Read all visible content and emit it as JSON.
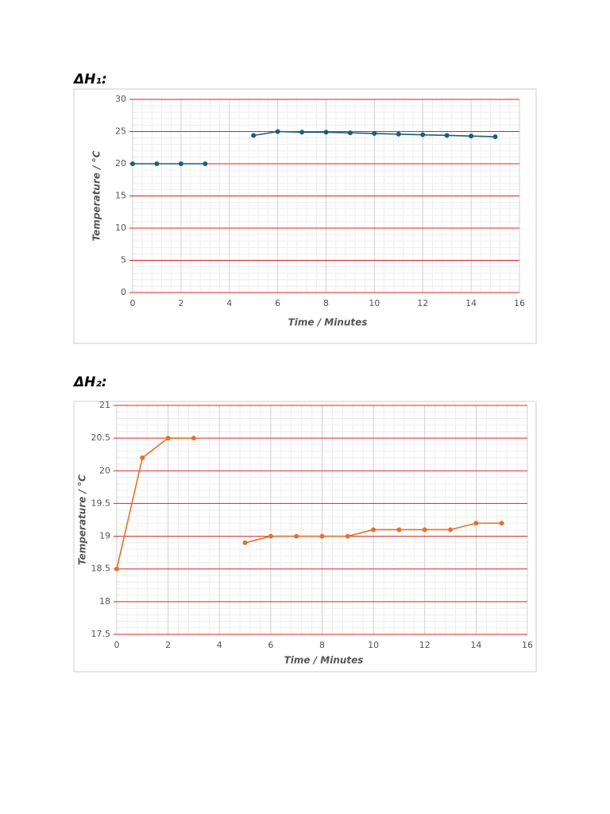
{
  "chart_data": [
    {
      "type": "line",
      "title": "ΔH₁:",
      "x_label": "Time / Minutes",
      "y_label": "Temperature / °C",
      "x": [
        0,
        1,
        2,
        3,
        4,
        5,
        6,
        7,
        8,
        9,
        10,
        11,
        12,
        13,
        14,
        15
      ],
      "series": [
        {
          "color": "#1b5e7b",
          "values": [
            20,
            20,
            20,
            20,
            null,
            24.4,
            25,
            24.9,
            24.9,
            24.8,
            24.7,
            24.6,
            24.5,
            24.4,
            24.3,
            24.2
          ]
        }
      ],
      "xlim": [
        0,
        16
      ],
      "xticks": [
        0,
        2,
        4,
        6,
        8,
        10,
        12,
        14,
        16
      ],
      "ylim": [
        0,
        30
      ],
      "yticks": [
        0,
        5,
        10,
        15,
        20,
        25,
        30
      ],
      "grid": true
    },
    {
      "type": "line",
      "title": "ΔH₂:",
      "x_label": "Time  / Minutes",
      "y_label": "Temperature / °C",
      "x": [
        0,
        1,
        2,
        3,
        4,
        5,
        6,
        7,
        8,
        9,
        10,
        11,
        12,
        13,
        14,
        15
      ],
      "series": [
        {
          "color": "#e8702a",
          "values": [
            18.5,
            20.2,
            20.5,
            20.5,
            null,
            18.9,
            19,
            19,
            19,
            19,
            19.1,
            19.1,
            19.1,
            19.1,
            19.2,
            19.2
          ]
        }
      ],
      "xlim": [
        0,
        16
      ],
      "xticks": [
        0,
        2,
        4,
        6,
        8,
        10,
        12,
        14,
        16
      ],
      "ylim": [
        17.5,
        21
      ],
      "yticks": [
        17.5,
        18,
        18.5,
        19,
        19.5,
        20,
        20.5,
        21
      ],
      "grid": true
    }
  ]
}
